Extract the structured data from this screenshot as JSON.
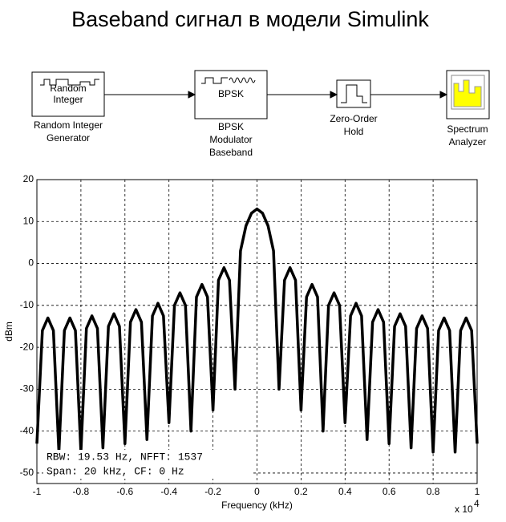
{
  "title": "Baseband сигнал в модели Simulink",
  "diagram": {
    "nodes": [
      {
        "label": [
          "Random",
          "Integer"
        ],
        "caption": [
          "Random Integer",
          "Generator"
        ]
      },
      {
        "label": [
          "BPSK"
        ],
        "caption": [
          "BPSK",
          "Modulator",
          "Baseband"
        ]
      },
      {
        "caption": [
          "Zero-Order",
          "Hold"
        ]
      },
      {
        "caption": [
          "Spectrum",
          "Analyzer"
        ]
      }
    ]
  },
  "chart_data": {
    "type": "line",
    "xlabel": "Frequency (kHz)",
    "ylabel": "dBm",
    "x_multiplier": {
      "base": "x 10",
      "exponent": "4"
    },
    "annotations": [
      "RBW: 19.53 Hz, NFFT: 1537",
      "Span: 20 kHz, CF: 0 Hz"
    ],
    "xlim": [
      -1,
      1
    ],
    "ylim": [
      -52.5,
      20
    ],
    "xticks": [
      -1,
      -0.8,
      -0.6,
      -0.4,
      -0.2,
      0,
      0.2,
      0.4,
      0.6,
      0.8,
      1
    ],
    "yticks": [
      -50,
      -40,
      -30,
      -20,
      -10,
      0,
      10,
      20
    ],
    "grid": true,
    "x": [
      -1,
      -0.975,
      -0.95,
      -0.925,
      -0.9,
      -0.875,
      -0.85,
      -0.825,
      -0.8,
      -0.775,
      -0.75,
      -0.725,
      -0.7,
      -0.675,
      -0.65,
      -0.625,
      -0.6,
      -0.575,
      -0.55,
      -0.525,
      -0.5,
      -0.475,
      -0.45,
      -0.425,
      -0.4,
      -0.375,
      -0.35,
      -0.325,
      -0.3,
      -0.275,
      -0.25,
      -0.225,
      -0.2,
      -0.175,
      -0.15,
      -0.125,
      -0.1,
      -0.075,
      -0.05,
      -0.025,
      0,
      0.025,
      0.05,
      0.075,
      0.1,
      0.125,
      0.15,
      0.175,
      0.2,
      0.225,
      0.25,
      0.275,
      0.3,
      0.325,
      0.35,
      0.375,
      0.4,
      0.425,
      0.45,
      0.475,
      0.5,
      0.525,
      0.55,
      0.575,
      0.6,
      0.625,
      0.65,
      0.675,
      0.7,
      0.725,
      0.75,
      0.775,
      0.8,
      0.825,
      0.85,
      0.875,
      0.9,
      0.925,
      0.95,
      0.975,
      1
    ],
    "series": [
      {
        "color": "#000000",
        "values": [
          -43,
          -16,
          -13,
          -16,
          -45,
          -16,
          -13,
          -16,
          -45,
          -15.5,
          -12.5,
          -15.5,
          -44,
          -15,
          -12,
          -15,
          -43,
          -14,
          -11,
          -14,
          -42,
          -12.5,
          -9.5,
          -12.5,
          -38,
          -10,
          -7,
          -10,
          -40,
          -8,
          -5,
          -8,
          -35,
          -4,
          -1,
          -4,
          -30,
          3,
          9,
          12,
          13,
          12,
          9,
          3,
          -30,
          -4,
          -1,
          -4,
          -35,
          -8,
          -5,
          -8,
          -40,
          -10,
          -7,
          -10,
          -38,
          -12.5,
          -9.5,
          -12.5,
          -42,
          -14,
          -11,
          -14,
          -43,
          -15,
          -12,
          -15,
          -44,
          -15.5,
          -12.5,
          -15.5,
          -45,
          -16,
          -13,
          -16,
          -45,
          -16,
          -13,
          -16,
          -43
        ]
      }
    ]
  }
}
